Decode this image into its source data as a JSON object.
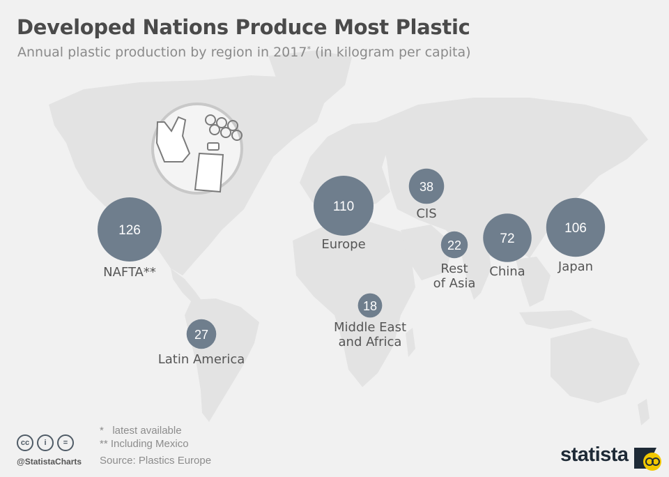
{
  "header": {
    "title": "Developed Nations Produce Most Plastic",
    "subtitle": "Annual plastic production by region in 2017",
    "subtitle_mark": "*",
    "subtitle_unit": " (in kilogram per capita)"
  },
  "chart_data": {
    "type": "bubble-map",
    "title": "Developed Nations Produce Most Plastic",
    "subtitle": "Annual plastic production by region in 2017* (in kilogram per capita)",
    "unit": "kilogram per capita",
    "series": [
      {
        "region": "NAFTA**",
        "value": 126
      },
      {
        "region": "Europe",
        "value": 110
      },
      {
        "region": "Japan",
        "value": 106
      },
      {
        "region": "China",
        "value": 72
      },
      {
        "region": "CIS",
        "value": 38
      },
      {
        "region": "Latin America",
        "value": 27
      },
      {
        "region": "Rest of Asia",
        "value": 22
      },
      {
        "region": "Middle East and Africa",
        "value": 18
      }
    ],
    "bubble_color": "#6f7e8d",
    "map_color": "#e3e3e3"
  },
  "footer": {
    "note1": "*   latest available",
    "note2": "** Including Mexico",
    "source": "Source: Plastics Europe",
    "handle": "@StatistaCharts",
    "brand": "statista",
    "cc_icons": [
      "cc-icon",
      "attribution-icon",
      "no-derivatives-icon"
    ],
    "cc_labels": [
      "cc",
      "i",
      "="
    ]
  },
  "colors": {
    "title": "#4a4a4a",
    "subtitle": "#8a8a8a",
    "bubble": "#6f7e8d",
    "label": "#555555",
    "brand_dark": "#1e2a36",
    "brand_accent": "#f2c800"
  }
}
